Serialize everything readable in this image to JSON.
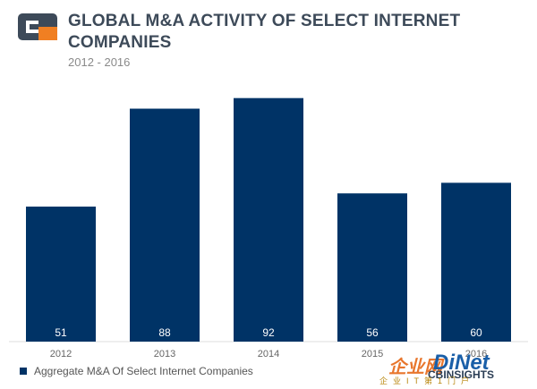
{
  "header": {
    "title": "GLOBAL M&A ACTIVITY OF SELECT INTERNET COMPANIES",
    "subtitle": "2012 - 2016"
  },
  "colors": {
    "bar": "#003366",
    "bar_label": "#ffffff",
    "axis": "#dddddd",
    "tick": "#666666"
  },
  "chart_data": {
    "type": "bar",
    "categories": [
      "2012",
      "2013",
      "2014",
      "2015",
      "2016"
    ],
    "series": [
      {
        "name": "Aggregate M&A Of Select Internet Companies",
        "values": [
          51,
          88,
          92,
          56,
          60
        ]
      }
    ],
    "ylim": [
      0,
      100
    ],
    "grid": false,
    "legend": "bottom-left",
    "data_labels": "inside-bottom"
  },
  "legend": {
    "label": "Aggregate M&A Of Select Internet Companies"
  },
  "watermark": {
    "main": "DiNet",
    "main_prefix": "企业网",
    "sub": "企业IT第1门户",
    "brand": "CBINSIGHTS"
  }
}
